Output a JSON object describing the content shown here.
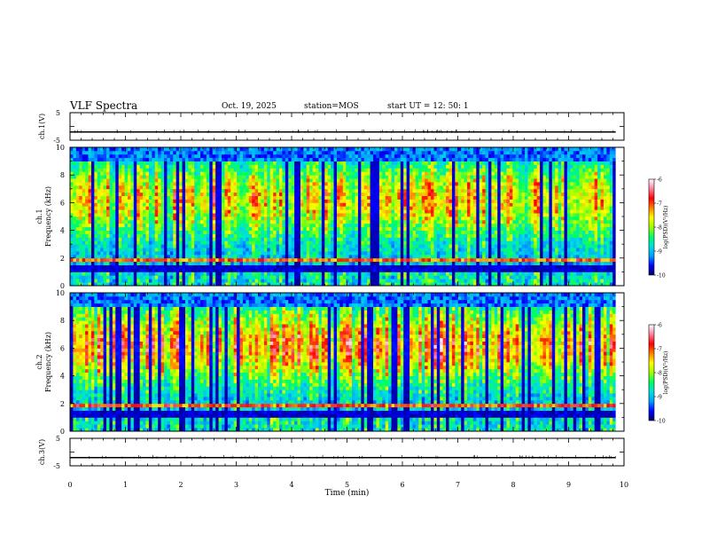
{
  "header": {
    "title": "VLF Spectra",
    "date": "Oct. 19, 2025",
    "station": "station=MOS",
    "start": "start  UT  =   12: 50: 1"
  },
  "colors": {
    "colormap": [
      "#000066",
      "#0000ff",
      "#00a0ff",
      "#00e0e0",
      "#00ff60",
      "#a0ff00",
      "#ffff00",
      "#ff8000",
      "#ff0000",
      "#ff80a0",
      "#ffffff"
    ]
  },
  "chart_data": [
    {
      "type": "line",
      "name": "ch1-voltage",
      "ylabel": "ch.1(V)",
      "ylim": [
        -5,
        5
      ],
      "yticks": [
        "5",
        "-5"
      ],
      "level": -2,
      "xlim": [
        0,
        10
      ]
    },
    {
      "type": "heatmap",
      "name": "ch1-spectrogram",
      "ylabel_channel": "ch.1",
      "ylabel": "Frequency (kHz)",
      "ylim": [
        0,
        10
      ],
      "yticks": [
        "0",
        "2",
        "4",
        "6",
        "8",
        "10"
      ],
      "xlim": [
        0,
        10
      ],
      "data_end_min": 9.85,
      "colorbar": {
        "label": "log(PSD)(V²/Hz)",
        "range": [
          -10,
          -6
        ],
        "ticks": [
          "-6",
          "-7",
          "-8",
          "-9",
          "-10"
        ]
      }
    },
    {
      "type": "heatmap",
      "name": "ch2-spectrogram",
      "ylabel_channel": "ch.2",
      "ylabel": "Frequency (kHz)",
      "ylim": [
        0,
        10
      ],
      "yticks": [
        "0",
        "2",
        "4",
        "6",
        "8",
        "10"
      ],
      "xlim": [
        0,
        10
      ],
      "data_end_min": 9.85,
      "colorbar": {
        "label": "log(PSD)(V²/Hz)",
        "range": [
          -10,
          -6
        ],
        "ticks": [
          "-6",
          "-7",
          "-8",
          "-9",
          "-10"
        ]
      }
    },
    {
      "type": "line",
      "name": "ch3-voltage",
      "ylabel": "ch.3(V)",
      "ylim": [
        -5,
        5
      ],
      "yticks": [
        "5",
        "-5"
      ],
      "level": -2,
      "xlim": [
        0,
        10
      ]
    }
  ],
  "xaxis": {
    "label": "Time (min)",
    "ticks": [
      "0",
      "1",
      "2",
      "3",
      "4",
      "5",
      "6",
      "7",
      "8",
      "9",
      "10"
    ]
  }
}
